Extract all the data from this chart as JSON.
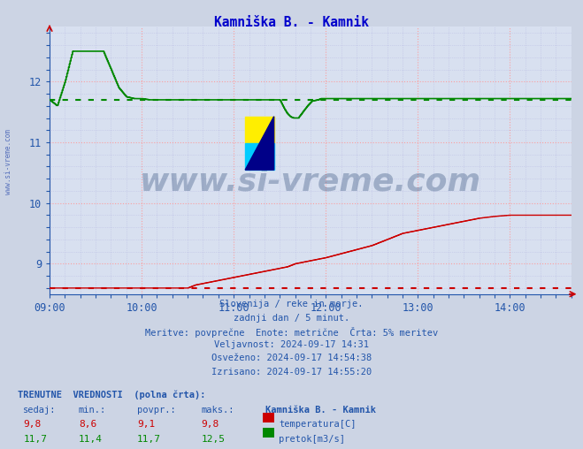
{
  "title": "Kamniška B. - Kamnik",
  "title_color": "#0000cc",
  "bg_color": "#ccd4e4",
  "plot_bg_color": "#d8e0f0",
  "grid_color_major": "#ff9999",
  "grid_color_minor": "#aaaadd",
  "xlabel_color": "#2255aa",
  "ylabel_color": "#2255aa",
  "tick_color": "#2255aa",
  "xlim_hours": [
    9.0,
    14.667
  ],
  "ylim": [
    8.5,
    12.9
  ],
  "yticks": [
    9,
    10,
    11,
    12
  ],
  "xticks_hours": [
    9,
    10,
    11,
    12,
    13,
    14
  ],
  "xtick_labels": [
    "09:00",
    "10:00",
    "11:00",
    "12:00",
    "13:00",
    "14:00"
  ],
  "temp_avg": 9.1,
  "temp_min": 8.6,
  "temp_max": 9.8,
  "temp_current": 9.8,
  "flow_avg": 11.7,
  "flow_min": 11.4,
  "flow_max": 12.5,
  "flow_current": 11.7,
  "red_color": "#cc0000",
  "green_color": "#008800",
  "watermark_color": "#1a3a6a",
  "footer_lines": [
    "Slovenija / reke in morje.",
    "zadnji dan / 5 minut.",
    "Meritve: povprečne  Enote: metrične  Črta: 5% meritev",
    "Veljavnost: 2024-09-17 14:31",
    "Osveženo: 2024-09-17 14:54:38",
    "Izrisano: 2024-09-17 14:55:20"
  ],
  "legend_title": "Kamniška B. - Kamnik",
  "legend_items": [
    "temperatura[C]",
    "pretok[m3/s]"
  ],
  "table_header": [
    "sedaj:",
    "min.:",
    "povpr.:",
    "maks.:"
  ],
  "table_temp": [
    "9,8",
    "8,6",
    "9,1",
    "9,8"
  ],
  "table_flow": [
    "11,7",
    "11,4",
    "11,7",
    "12,5"
  ],
  "watermark_text": "www.si-vreme.com",
  "sidebar_text": "www.si-vreme.com",
  "temp_series_t": [
    9.0,
    10.5,
    10.583,
    10.75,
    10.917,
    11.083,
    11.25,
    11.417,
    11.583,
    11.667,
    11.833,
    12.0,
    12.25,
    12.5,
    12.667,
    12.833,
    13.0,
    13.167,
    13.333,
    13.5,
    13.667,
    13.833,
    14.0,
    14.167,
    14.333,
    14.5,
    14.667
  ],
  "temp_series_v": [
    8.6,
    8.6,
    8.65,
    8.7,
    8.75,
    8.8,
    8.85,
    8.9,
    8.95,
    9.0,
    9.05,
    9.1,
    9.2,
    9.3,
    9.4,
    9.5,
    9.55,
    9.6,
    9.65,
    9.7,
    9.75,
    9.78,
    9.8,
    9.8,
    9.8,
    9.8,
    9.8
  ],
  "flow_series_t": [
    9.0,
    9.083,
    9.167,
    9.25,
    9.333,
    9.583,
    9.667,
    9.75,
    9.833,
    9.917,
    10.0,
    10.083,
    10.167,
    11.5,
    11.55,
    11.583,
    11.617,
    11.65,
    11.7,
    11.75,
    11.8,
    11.85,
    11.917,
    11.95,
    12.0,
    14.667
  ],
  "flow_series_v": [
    11.7,
    11.6,
    12.0,
    12.5,
    12.5,
    12.5,
    12.2,
    11.9,
    11.75,
    11.72,
    11.72,
    11.7,
    11.7,
    11.7,
    11.55,
    11.47,
    11.42,
    11.4,
    11.4,
    11.5,
    11.6,
    11.68,
    11.7,
    11.72,
    11.72,
    11.72
  ]
}
